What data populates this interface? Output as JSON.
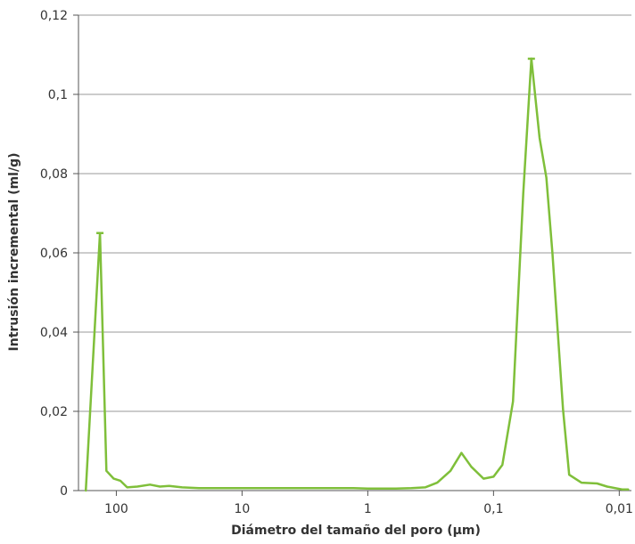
{
  "chart_data": {
    "type": "line",
    "title": "",
    "xlabel": "Diámetro del tamaño del poro (µm)",
    "ylabel": "Intrusión incremental (ml/g)",
    "x_scale": "log",
    "x_reversed": true,
    "xlim": [
      200,
      0.008
    ],
    "ylim": [
      0,
      0.12
    ],
    "x_ticks": [
      {
        "value": 100,
        "label": "100"
      },
      {
        "value": 10,
        "label": "10"
      },
      {
        "value": 1,
        "label": "1"
      },
      {
        "value": 0.1,
        "label": "0,1"
      },
      {
        "value": 0.01,
        "label": "0,01"
      }
    ],
    "y_ticks": [
      {
        "value": 0,
        "label": "0"
      },
      {
        "value": 0.02,
        "label": "0,02"
      },
      {
        "value": 0.04,
        "label": "0,04"
      },
      {
        "value": 0.06,
        "label": "0,06"
      },
      {
        "value": 0.08,
        "label": "0,08"
      },
      {
        "value": 0.1,
        "label": "0,1"
      },
      {
        "value": 0.12,
        "label": "0,12"
      }
    ],
    "grid": {
      "horizontal": true,
      "vertical": false
    },
    "legend": "none",
    "colors": {
      "line": "#7fbf3a",
      "grid": "#9a9a9a",
      "axis": "#555555",
      "text": "#333333"
    },
    "series": [
      {
        "x": [
          175,
          135,
          120,
          105,
          93,
          82,
          68,
          54,
          45,
          38,
          30,
          22,
          15,
          11,
          8.5,
          6,
          4,
          3,
          2.2,
          1.6,
          1.3,
          1,
          0.8,
          0.6,
          0.45,
          0.35,
          0.28,
          0.22,
          0.18,
          0.15,
          0.12,
          0.1,
          0.085,
          0.07,
          0.058,
          0.05,
          0.043,
          0.038,
          0.034,
          0.028,
          0.025,
          0.02,
          0.015,
          0.0125,
          0.0095,
          0.0085
        ],
        "y": [
          0.0,
          0.065,
          0.005,
          0.003,
          0.0025,
          0.0008,
          0.001,
          0.0015,
          0.001,
          0.0012,
          0.0008,
          0.0006,
          0.0006,
          0.0006,
          0.0006,
          0.0006,
          0.0006,
          0.0006,
          0.0006,
          0.0006,
          0.0006,
          0.0005,
          0.0005,
          0.0005,
          0.0006,
          0.0008,
          0.002,
          0.005,
          0.0095,
          0.006,
          0.003,
          0.0035,
          0.0065,
          0.0225,
          0.075,
          0.109,
          0.089,
          0.079,
          0.06,
          0.0205,
          0.004,
          0.002,
          0.0018,
          0.001,
          0.0003,
          0.0003
        ]
      }
    ],
    "peak_markers": [
      {
        "x": 135,
        "y": 0.065
      },
      {
        "x": 0.05,
        "y": 0.109
      }
    ]
  }
}
